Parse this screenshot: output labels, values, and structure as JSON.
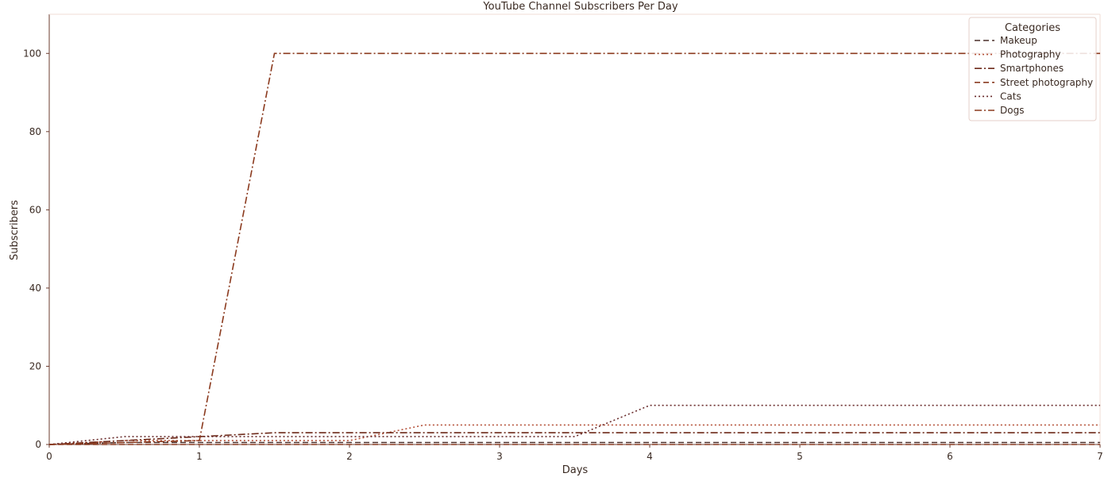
{
  "chart_data": {
    "type": "line",
    "title": "YouTube Channel Subscribers Per Day",
    "xlabel": "Days",
    "ylabel": "Subscribers",
    "xlim": [
      0,
      7
    ],
    "ylim": [
      0,
      110
    ],
    "xticks": [
      0,
      1,
      2,
      3,
      4,
      5,
      6,
      7
    ],
    "yticks": [
      0,
      20,
      40,
      60,
      80,
      100
    ],
    "grid": false,
    "legend": {
      "title": "Categories",
      "placement": "top-right"
    },
    "series": [
      {
        "name": "Makeup",
        "color": "#4a2f2a",
        "dash": "dashed",
        "x": [
          0,
          0.5,
          1,
          2,
          3,
          4,
          5,
          6,
          7
        ],
        "y": [
          0,
          0.5,
          0.5,
          0.5,
          0.5,
          0.5,
          0.5,
          0.5,
          0.5
        ]
      },
      {
        "name": "Photography",
        "color": "#b5523a",
        "dash": "dotted",
        "x": [
          0,
          0.5,
          1,
          1.5,
          2,
          2.5,
          3,
          4,
          5,
          6,
          7
        ],
        "y": [
          0,
          1,
          1,
          1,
          1,
          5,
          5,
          5,
          5,
          5,
          5
        ]
      },
      {
        "name": "Smartphones",
        "color": "#6e2a1a",
        "dash": "dashdot",
        "x": [
          0,
          0.5,
          1,
          1.5,
          2,
          3,
          4,
          5,
          6,
          7
        ],
        "y": [
          0,
          1,
          2,
          3,
          3,
          3,
          3,
          3,
          3,
          3
        ]
      },
      {
        "name": "Street photography",
        "color": "#8a3c22",
        "dash": "dashed",
        "x": [
          0,
          1,
          2,
          3,
          4,
          5,
          6,
          7
        ],
        "y": [
          0,
          0,
          0,
          0,
          0,
          0,
          0,
          0
        ]
      },
      {
        "name": "Cats",
        "color": "#6b2e2e",
        "dash": "dotted",
        "x": [
          0,
          0.5,
          1,
          2,
          3,
          3.5,
          4,
          5,
          6,
          7
        ],
        "y": [
          0,
          2,
          2,
          2,
          2,
          2,
          10,
          10,
          10,
          10
        ]
      },
      {
        "name": "Dogs",
        "color": "#8b3a1e",
        "dash": "dashdot",
        "x": [
          0,
          1,
          1.5,
          2,
          3,
          4,
          5,
          6,
          7
        ],
        "y": [
          0,
          1,
          100,
          100,
          100,
          100,
          100,
          100,
          100
        ]
      }
    ]
  }
}
